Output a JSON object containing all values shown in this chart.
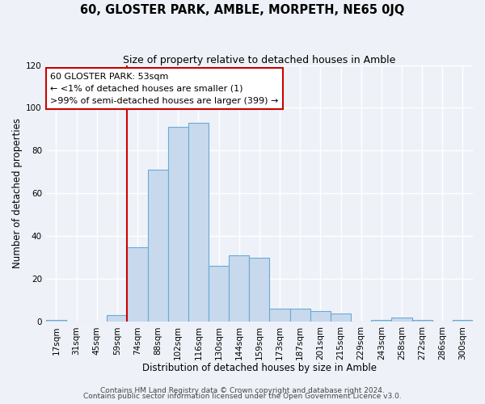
{
  "title": "60, GLOSTER PARK, AMBLE, MORPETH, NE65 0JQ",
  "subtitle": "Size of property relative to detached houses in Amble",
  "xlabel": "Distribution of detached houses by size in Amble",
  "ylabel": "Number of detached properties",
  "bar_labels": [
    "17sqm",
    "31sqm",
    "45sqm",
    "59sqm",
    "74sqm",
    "88sqm",
    "102sqm",
    "116sqm",
    "130sqm",
    "144sqm",
    "159sqm",
    "173sqm",
    "187sqm",
    "201sqm",
    "215sqm",
    "229sqm",
    "243sqm",
    "258sqm",
    "272sqm",
    "286sqm",
    "300sqm"
  ],
  "bar_values": [
    1,
    0,
    0,
    3,
    35,
    71,
    91,
    93,
    26,
    31,
    30,
    6,
    6,
    5,
    4,
    0,
    1,
    2,
    1,
    0,
    1
  ],
  "bar_color": "#c8d9ee",
  "bar_edge_color": "#6aaad4",
  "vline_x_index": 3,
  "vline_color": "#cc0000",
  "annotation_line1": "60 GLOSTER PARK: 53sqm",
  "annotation_line2": "← <1% of detached houses are smaller (1)",
  "annotation_line3": ">99% of semi-detached houses are larger (399) →",
  "box_edge_color": "#cc0000",
  "ylim": [
    0,
    120
  ],
  "yticks": [
    0,
    20,
    40,
    60,
    80,
    100,
    120
  ],
  "footer1": "Contains HM Land Registry data © Crown copyright and database right 2024.",
  "footer2": "Contains public sector information licensed under the Open Government Licence v3.0.",
  "background_color": "#eef2f8",
  "grid_color": "#ffffff",
  "title_fontsize": 10.5,
  "subtitle_fontsize": 9,
  "axis_label_fontsize": 8.5,
  "tick_fontsize": 7.5,
  "annotation_fontsize": 8,
  "footer_fontsize": 6.5
}
